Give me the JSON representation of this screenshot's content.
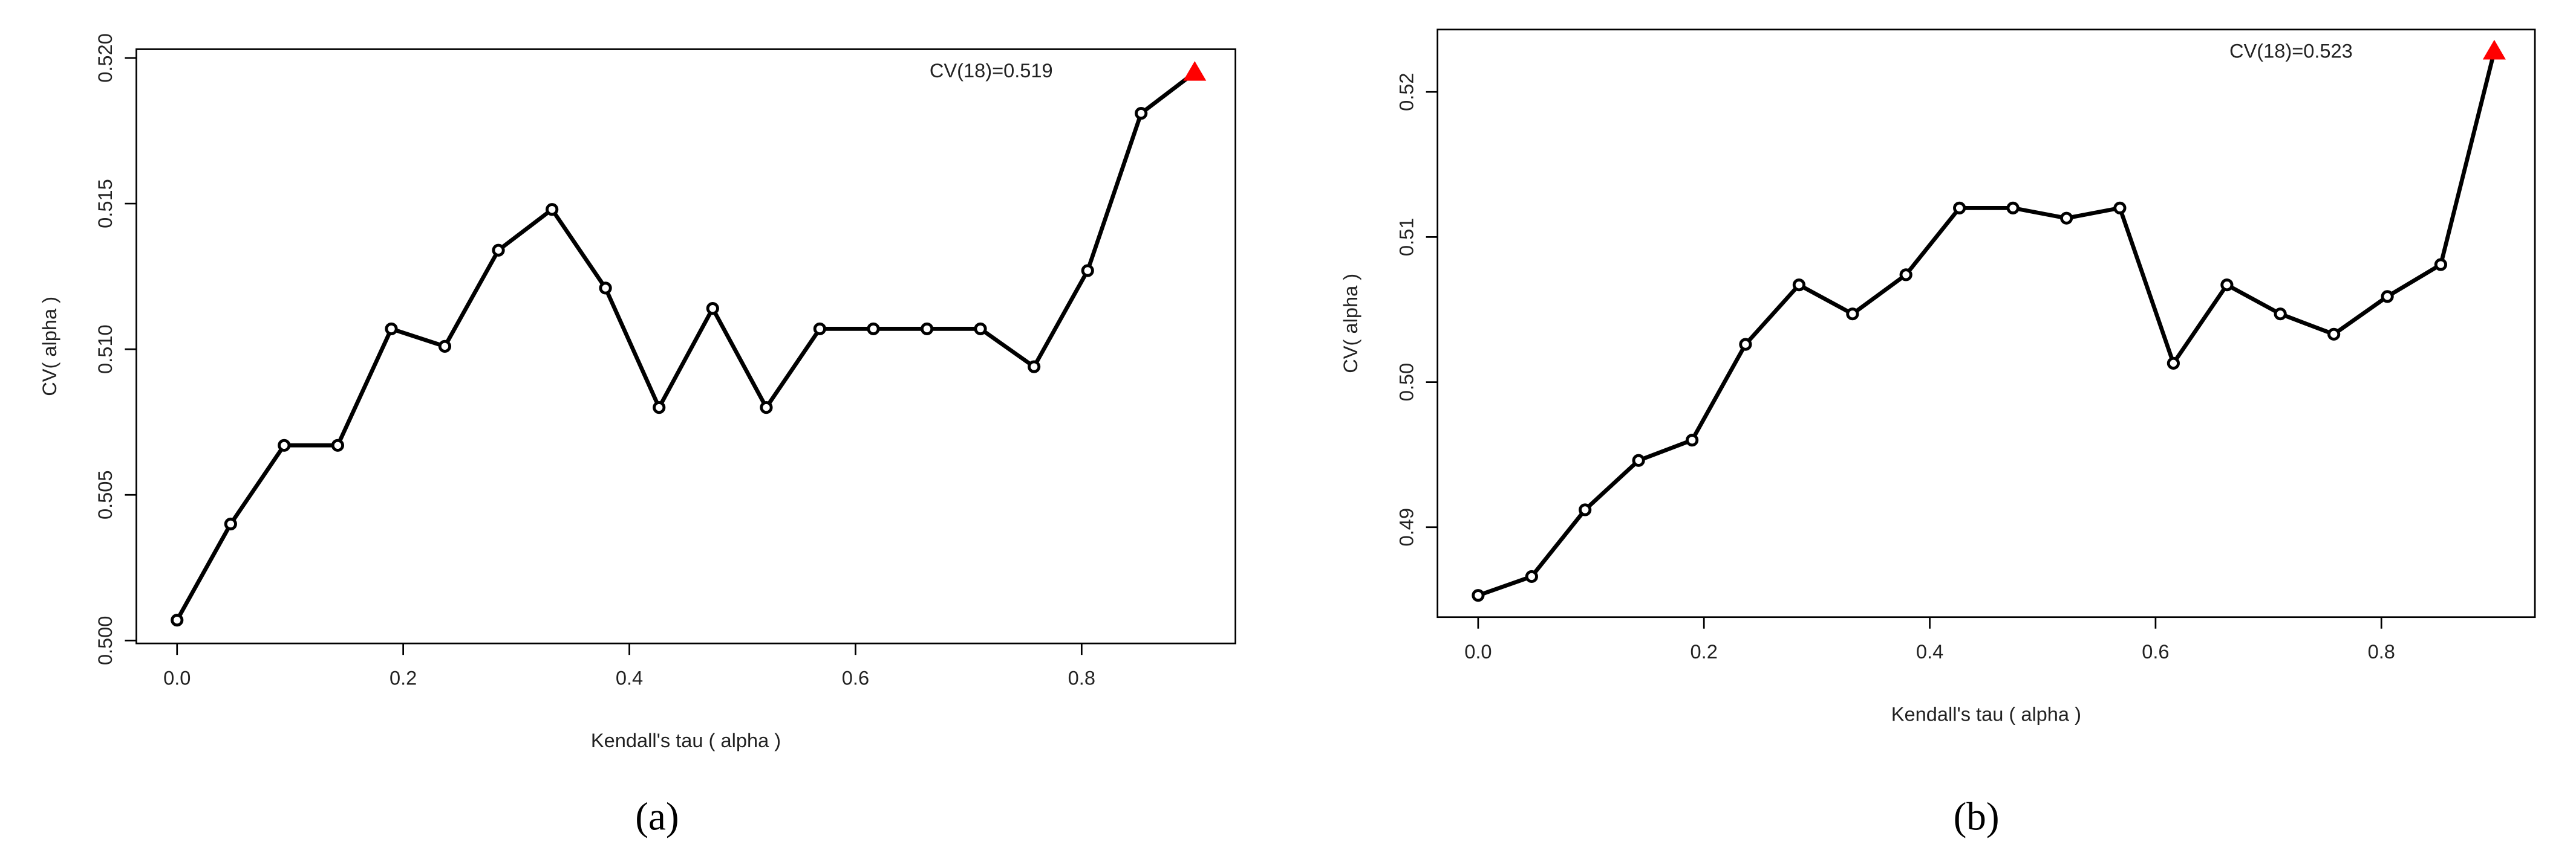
{
  "chart_data": [
    {
      "type": "line",
      "panel_label": "(a)",
      "xlabel": "Kendall's tau ( alpha )",
      "ylabel": "CV( alpha )",
      "annotation": "CV(18)=0.519",
      "x": [
        0,
        0.0474,
        0.0947,
        0.1421,
        0.1895,
        0.2368,
        0.2842,
        0.3316,
        0.3789,
        0.4263,
        0.4737,
        0.5211,
        0.5684,
        0.6158,
        0.6632,
        0.7105,
        0.7579,
        0.8053,
        0.8526,
        0.9
      ],
      "values": [
        0.5007,
        0.504,
        0.5067,
        0.5067,
        0.5107,
        0.5101,
        0.5134,
        0.5148,
        0.5121,
        0.508,
        0.5114,
        0.508,
        0.5107,
        0.5107,
        0.5107,
        0.5107,
        0.5094,
        0.5127,
        0.5181,
        0.5195
      ],
      "color": "#000000",
      "highlight_color": "#ff0000",
      "xlim": [
        -0.036,
        0.936
      ],
      "ylim": [
        0.4999,
        0.5203
      ],
      "xticks": [
        {
          "value": 0,
          "label": "0.0"
        },
        0.2,
        0.4,
        0.6,
        0.8
      ],
      "yticks": [
        {
          "value": 0.5,
          "label": "0.500"
        },
        0.505,
        {
          "value": 0.51,
          "label": "0.510"
        },
        0.515,
        {
          "value": 0.52,
          "label": "0.520"
        }
      ]
    },
    {
      "type": "line",
      "panel_label": "(b)",
      "xlabel": "Kendall's tau ( alpha )",
      "ylabel": "CV( alpha )",
      "annotation": "CV(18)=0.523",
      "x": [
        0,
        0.0474,
        0.0947,
        0.1421,
        0.1895,
        0.2368,
        0.2842,
        0.3316,
        0.3789,
        0.4263,
        0.4737,
        0.5211,
        0.5684,
        0.6158,
        0.6632,
        0.7105,
        0.7579,
        0.8053,
        0.8526,
        0.9
      ],
      "values": [
        0.4853,
        0.4866,
        0.4912,
        0.4946,
        0.496,
        0.5026,
        0.5067,
        0.5047,
        0.5074,
        0.512,
        0.512,
        0.5113,
        0.512,
        0.5013,
        0.5067,
        0.5047,
        0.5033,
        0.5059,
        0.5081,
        0.5228
      ],
      "color": "#000000",
      "highlight_color": "#ff0000",
      "xlim": [
        -0.036,
        0.936
      ],
      "ylim": [
        0.4838,
        0.5243
      ],
      "xticks": [
        {
          "value": 0,
          "label": "0.0"
        },
        0.2,
        0.4,
        0.6,
        0.8
      ],
      "yticks": [
        0.49,
        {
          "value": 0.5,
          "label": "0.50"
        },
        0.51,
        0.52
      ]
    }
  ]
}
